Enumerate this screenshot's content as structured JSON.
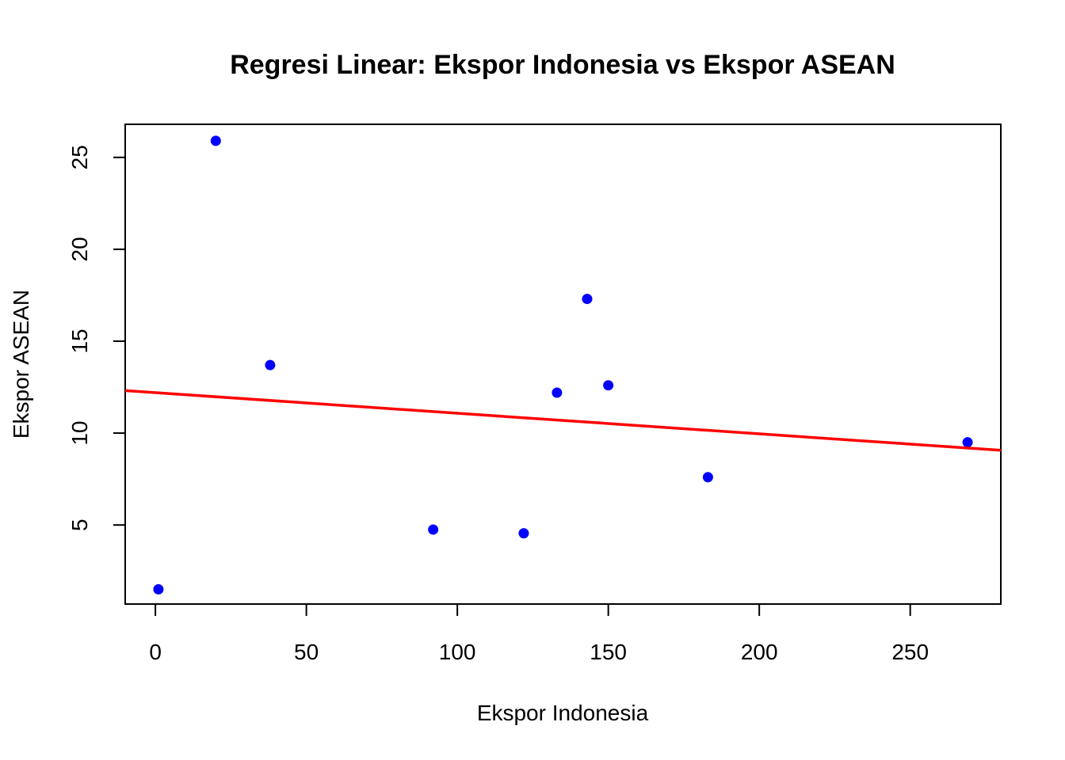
{
  "chart_data": {
    "type": "scatter",
    "title": "Regresi Linear: Ekspor Indonesia vs Ekspor ASEAN",
    "xlabel": "Ekspor Indonesia",
    "ylabel": "Ekspor ASEAN",
    "xlim": [
      -10,
      280
    ],
    "ylim": [
      0.7,
      26.8
    ],
    "x_ticks": [
      0,
      50,
      100,
      150,
      200,
      250
    ],
    "y_ticks": [
      5,
      10,
      15,
      20,
      25
    ],
    "grid": false,
    "legend": "none",
    "point_color": "#0000ff",
    "line_color": "#ff0000",
    "points": [
      {
        "x": 1,
        "y": 1.5
      },
      {
        "x": 20,
        "y": 25.9
      },
      {
        "x": 38,
        "y": 13.7
      },
      {
        "x": 92,
        "y": 4.75
      },
      {
        "x": 122,
        "y": 4.55
      },
      {
        "x": 133,
        "y": 12.2
      },
      {
        "x": 143,
        "y": 17.3
      },
      {
        "x": 150,
        "y": 12.6
      },
      {
        "x": 183,
        "y": 7.6
      },
      {
        "x": 269,
        "y": 9.5
      }
    ],
    "regression_line": {
      "intercept": 12.2,
      "slope": -0.0112
    }
  }
}
